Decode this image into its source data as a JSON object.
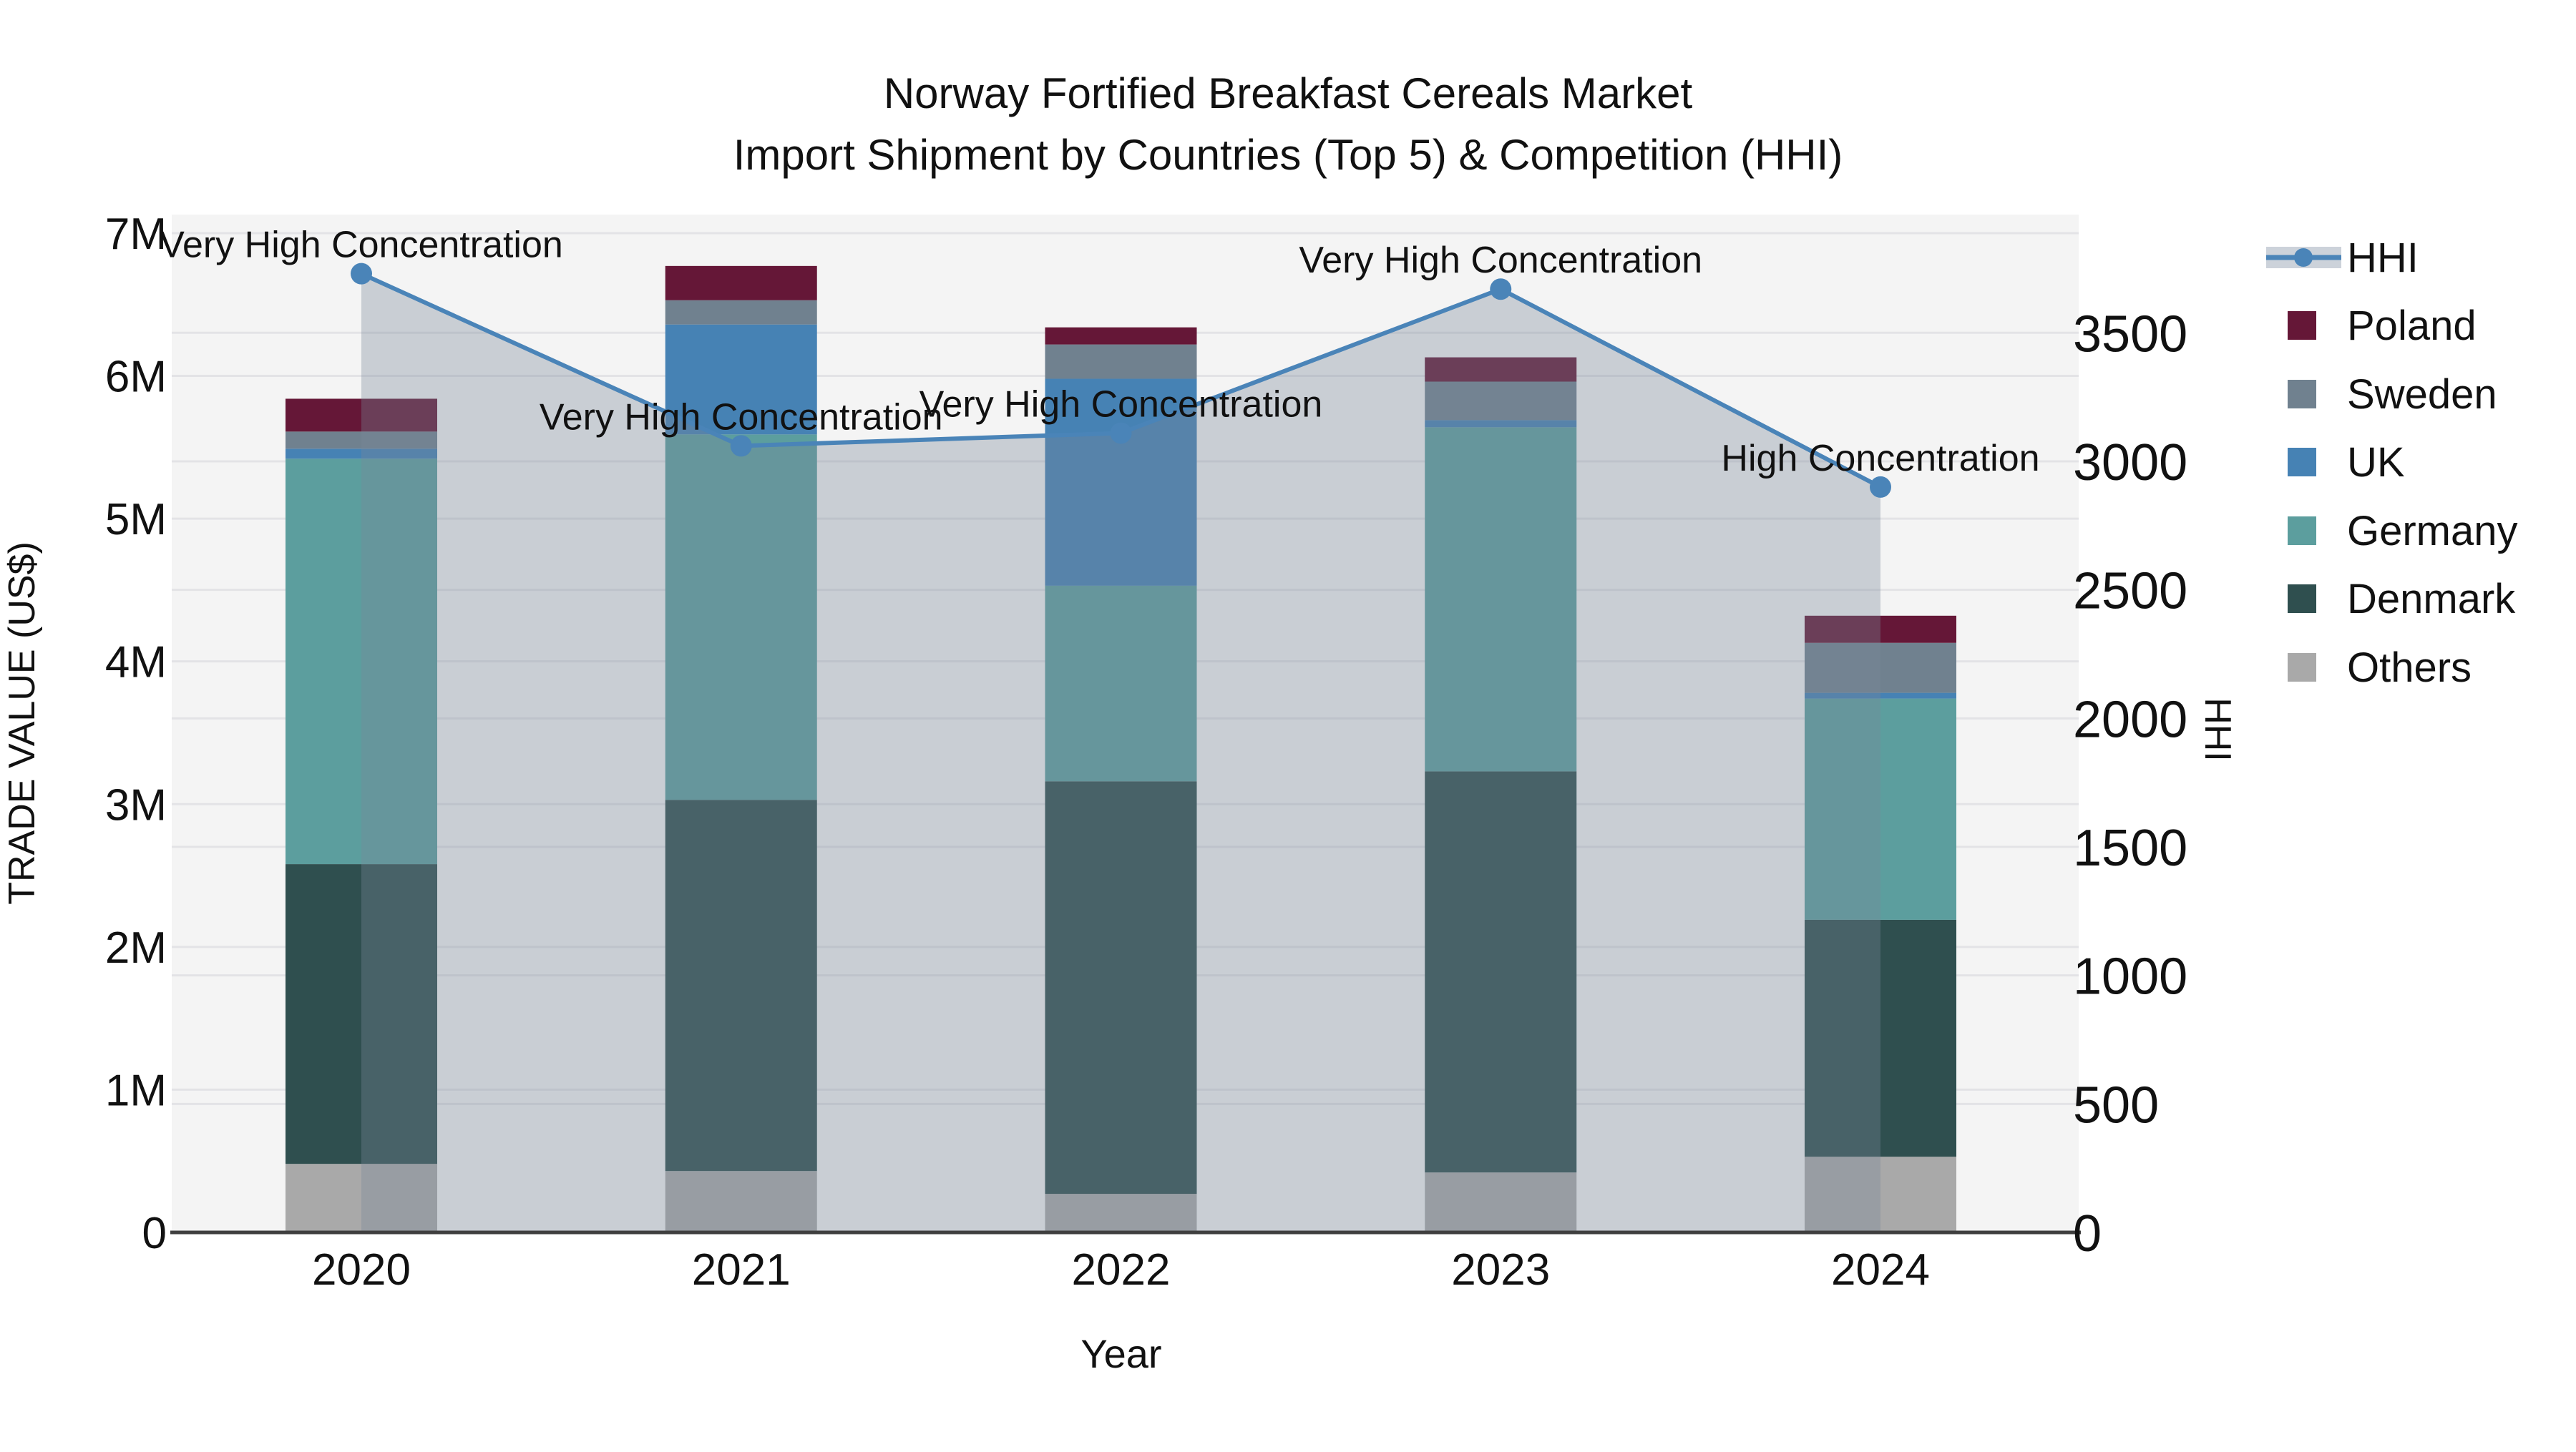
{
  "title": {
    "line1": "Norway Fortified Breakfast Cereals Market",
    "line2": "Import Shipment by Countries (Top 5) & Competition (HHI)"
  },
  "colors": {
    "plot_bg": "#F4F4F4",
    "grid": "#E3E3E6",
    "axis_line": "#3F3F3F",
    "text": "#111111",
    "hhi_line": "#4A84B8",
    "hhi_area": "rgba(119,136,153,0.35)",
    "legend_band": "#CCD2DA"
  },
  "chart_data": {
    "type": "bar",
    "subtype": "stacked-bars-with-line",
    "categories": [
      "2020",
      "2021",
      "2022",
      "2023",
      "2024"
    ],
    "stack_series": [
      {
        "name": "Others",
        "color": "#A9A9A9",
        "values": [
          480000,
          430000,
          270000,
          420000,
          530000
        ]
      },
      {
        "name": "Denmark",
        "color": "#2F4F4F",
        "values": [
          2100000,
          2600000,
          2890000,
          2810000,
          1660000
        ]
      },
      {
        "name": "Germany",
        "color": "#5C9E9E",
        "values": [
          2840000,
          2560000,
          1370000,
          2410000,
          1550000
        ]
      },
      {
        "name": "UK",
        "color": "#4682B4",
        "values": [
          70000,
          770000,
          1450000,
          50000,
          40000
        ]
      },
      {
        "name": "Sweden",
        "color": "#70818F",
        "values": [
          120000,
          170000,
          240000,
          270000,
          350000
        ]
      },
      {
        "name": "Poland",
        "color": "#651737",
        "values": [
          230000,
          240000,
          120000,
          170000,
          190000
        ]
      }
    ],
    "line_series": {
      "name": "HHI",
      "color": "#4A84B8",
      "area_color": "rgba(119,136,153,0.35)",
      "values": [
        3730,
        3060,
        3110,
        3670,
        2900
      ]
    },
    "annotations": [
      "Very High Concentration",
      "Very High Concentration",
      "Very High Concentration",
      "Very High Concentration",
      "High Concentration"
    ],
    "x_axis": {
      "label": "Year"
    },
    "y_left": {
      "label": "TRADE VALUE (US$)",
      "tick_labels": [
        "0",
        "1M",
        "2M",
        "3M",
        "4M",
        "5M",
        "6M",
        "7M"
      ],
      "tick_values": [
        0,
        1000000,
        2000000,
        3000000,
        4000000,
        5000000,
        6000000,
        7000000
      ],
      "max": 7130000
    },
    "y_right": {
      "label": "HHI",
      "tick_labels": [
        "0",
        "500",
        "1000",
        "1500",
        "2000",
        "2500",
        "3000",
        "3500"
      ],
      "tick_values": [
        0,
        500,
        1000,
        1500,
        2000,
        2500,
        3000,
        3500
      ],
      "max": 3960
    },
    "legend_order": [
      "HHI",
      "Poland",
      "Sweden",
      "UK",
      "Germany",
      "Denmark",
      "Others"
    ],
    "grid": true,
    "legend_position": "right"
  }
}
